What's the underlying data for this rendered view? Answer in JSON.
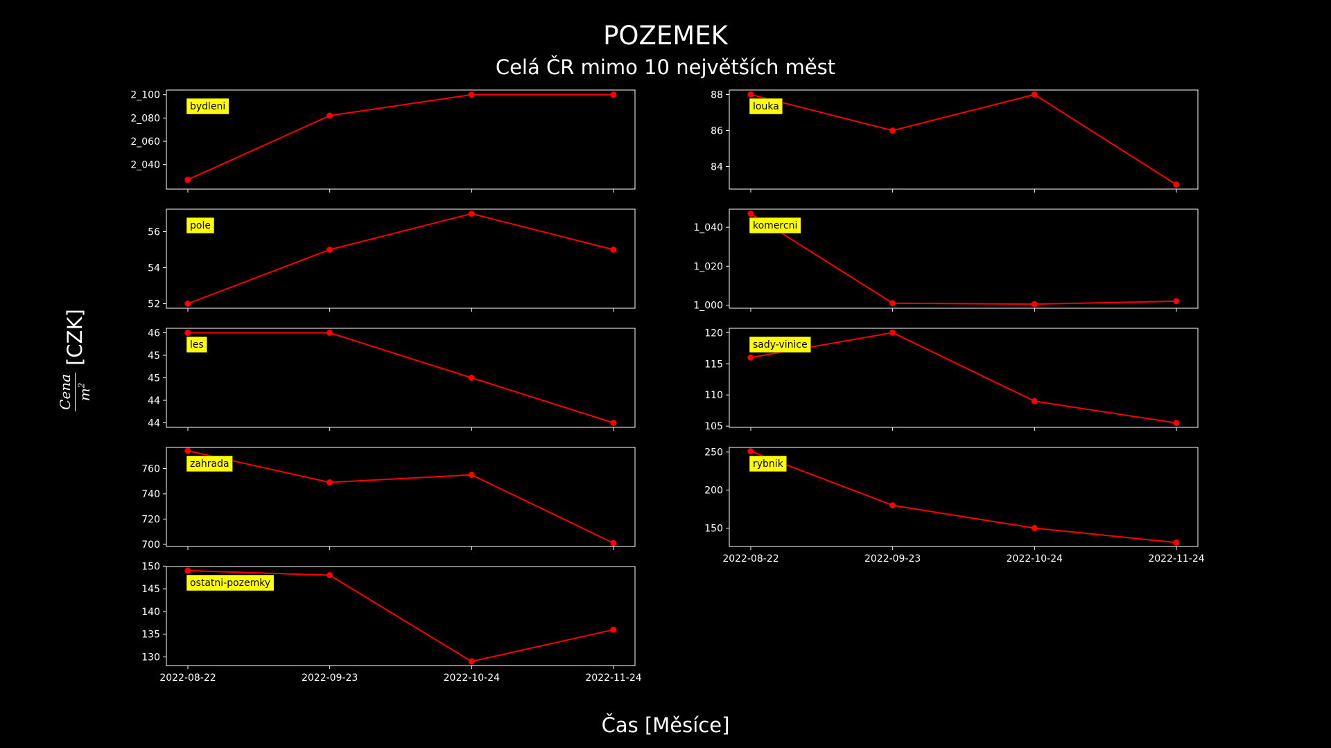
{
  "header": {
    "title": "POZEMEK",
    "subtitle": "Celá ČR mimo 10 největších měst"
  },
  "xlabel": "Čas [Měsíce]",
  "ylabel": {
    "numerator": "Cena",
    "denominator": "m",
    "exponent": "2",
    "unit": "[CZK]"
  },
  "colors": {
    "background": "#000000",
    "line": "#ff0000",
    "label_bg": "#ffff00",
    "axis": "#ffffff"
  },
  "chart_data": [
    {
      "type": "line",
      "label": "bydleni",
      "x": [
        "2022-08-22",
        "2022-09-23",
        "2022-10-24",
        "2022-11-24"
      ],
      "values": [
        2027,
        2082,
        2100,
        2100
      ],
      "ylim": [
        2019,
        2104
      ],
      "yticks": [
        2040,
        2060,
        2080,
        2100
      ],
      "ytick_labels": [
        "2_040",
        "2_060",
        "2_080",
        "2_100"
      ]
    },
    {
      "type": "line",
      "label": "louka",
      "x": [
        "2022-08-22",
        "2022-09-23",
        "2022-10-24",
        "2022-11-24"
      ],
      "values": [
        88,
        86,
        88,
        83
      ],
      "ylim": [
        82.75,
        88.25
      ],
      "yticks": [
        84,
        86,
        88
      ],
      "ytick_labels": [
        "84",
        "86",
        "88"
      ]
    },
    {
      "type": "line",
      "label": "pole",
      "x": [
        "2022-08-22",
        "2022-09-23",
        "2022-10-24",
        "2022-11-24"
      ],
      "values": [
        52,
        55,
        57,
        55
      ],
      "ylim": [
        51.75,
        57.25
      ],
      "yticks": [
        52,
        54,
        56
      ],
      "ytick_labels": [
        "52",
        "54",
        "56"
      ]
    },
    {
      "type": "line",
      "label": "komercni",
      "x": [
        "2022-08-22",
        "2022-09-23",
        "2022-10-24",
        "2022-11-24"
      ],
      "values": [
        1047,
        1001,
        1000.5,
        1002
      ],
      "ylim": [
        998.4,
        1049.3
      ],
      "yticks": [
        1000,
        1020,
        1040
      ],
      "ytick_labels": [
        "1_000",
        "1_020",
        "1_040"
      ]
    },
    {
      "type": "line",
      "label": "les",
      "x": [
        "2022-08-22",
        "2022-09-23",
        "2022-10-24",
        "2022-11-24"
      ],
      "values": [
        46,
        46,
        45,
        44
      ],
      "ylim": [
        43.9,
        46.1
      ],
      "yticks": [
        44,
        44.5,
        45,
        45.5,
        46
      ],
      "ytick_labels": [
        "44",
        "44",
        "45",
        "45",
        "46"
      ]
    },
    {
      "type": "line",
      "label": "sady-vinice",
      "x": [
        "2022-08-22",
        "2022-09-23",
        "2022-10-24",
        "2022-11-24"
      ],
      "values": [
        116,
        120,
        109,
        105.5
      ],
      "ylim": [
        104.8,
        120.7
      ],
      "yticks": [
        105,
        110,
        115,
        120
      ],
      "ytick_labels": [
        "105",
        "110",
        "115",
        "120"
      ]
    },
    {
      "type": "line",
      "label": "zahrada",
      "x": [
        "2022-08-22",
        "2022-09-23",
        "2022-10-24",
        "2022-11-24"
      ],
      "values": [
        774,
        749,
        755,
        701
      ],
      "ylim": [
        698.3,
        776.7
      ],
      "yticks": [
        700,
        720,
        740,
        760
      ],
      "ytick_labels": [
        "700",
        "720",
        "740",
        "760"
      ]
    },
    {
      "type": "line",
      "label": "rybnik",
      "x": [
        "2022-08-22",
        "2022-09-23",
        "2022-10-24",
        "2022-11-24"
      ],
      "values": [
        251,
        180,
        150,
        131
      ],
      "ylim": [
        125.9,
        256.1
      ],
      "yticks": [
        150,
        200,
        250
      ],
      "ytick_labels": [
        "150",
        "200",
        "250"
      ]
    },
    {
      "type": "line",
      "label": "ostatni-pozemky",
      "x": [
        "2022-08-22",
        "2022-09-23",
        "2022-10-24",
        "2022-11-24"
      ],
      "values": [
        149,
        148,
        129,
        136
      ],
      "ylim": [
        128.1,
        149.9
      ],
      "yticks": [
        130,
        135,
        140,
        145,
        150
      ],
      "ytick_labels": [
        "130",
        "135",
        "140",
        "145",
        "150"
      ]
    }
  ]
}
